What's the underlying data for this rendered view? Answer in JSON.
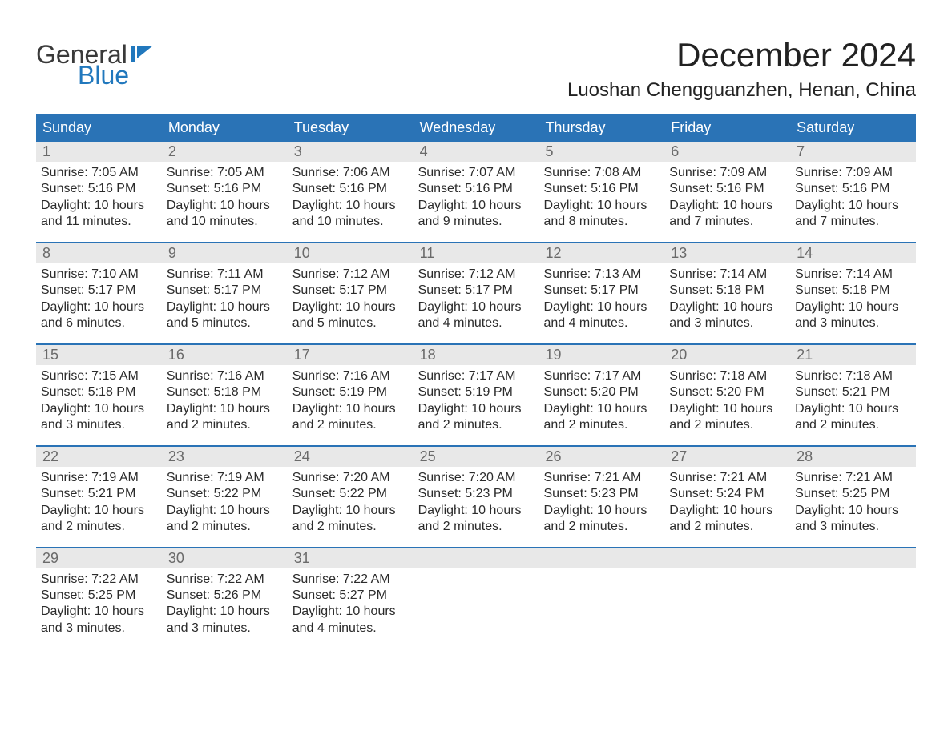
{
  "logo": {
    "text_general": "General",
    "text_blue": "Blue",
    "icon_color": "#2178bd"
  },
  "header": {
    "month_title": "December 2024",
    "location": "Luoshan Chengguanzhen, Henan, China"
  },
  "styling": {
    "header_bg": "#2a73b6",
    "header_text": "#ffffff",
    "row_divider": "#2a73b6",
    "daynum_bg": "#e8e8e8",
    "daynum_color": "#6a6a6a",
    "body_text": "#2b2b2b",
    "page_bg": "#ffffff",
    "title_fontsize": 42,
    "location_fontsize": 24,
    "dow_fontsize": 18,
    "body_fontsize": 16,
    "columns": 7
  },
  "calendar": {
    "dow": [
      "Sunday",
      "Monday",
      "Tuesday",
      "Wednesday",
      "Thursday",
      "Friday",
      "Saturday"
    ],
    "weeks": [
      [
        {
          "n": "1",
          "sr": "Sunrise: 7:05 AM",
          "ss": "Sunset: 5:16 PM",
          "d1": "Daylight: 10 hours",
          "d2": "and 11 minutes."
        },
        {
          "n": "2",
          "sr": "Sunrise: 7:05 AM",
          "ss": "Sunset: 5:16 PM",
          "d1": "Daylight: 10 hours",
          "d2": "and 10 minutes."
        },
        {
          "n": "3",
          "sr": "Sunrise: 7:06 AM",
          "ss": "Sunset: 5:16 PM",
          "d1": "Daylight: 10 hours",
          "d2": "and 10 minutes."
        },
        {
          "n": "4",
          "sr": "Sunrise: 7:07 AM",
          "ss": "Sunset: 5:16 PM",
          "d1": "Daylight: 10 hours",
          "d2": "and 9 minutes."
        },
        {
          "n": "5",
          "sr": "Sunrise: 7:08 AM",
          "ss": "Sunset: 5:16 PM",
          "d1": "Daylight: 10 hours",
          "d2": "and 8 minutes."
        },
        {
          "n": "6",
          "sr": "Sunrise: 7:09 AM",
          "ss": "Sunset: 5:16 PM",
          "d1": "Daylight: 10 hours",
          "d2": "and 7 minutes."
        },
        {
          "n": "7",
          "sr": "Sunrise: 7:09 AM",
          "ss": "Sunset: 5:16 PM",
          "d1": "Daylight: 10 hours",
          "d2": "and 7 minutes."
        }
      ],
      [
        {
          "n": "8",
          "sr": "Sunrise: 7:10 AM",
          "ss": "Sunset: 5:17 PM",
          "d1": "Daylight: 10 hours",
          "d2": "and 6 minutes."
        },
        {
          "n": "9",
          "sr": "Sunrise: 7:11 AM",
          "ss": "Sunset: 5:17 PM",
          "d1": "Daylight: 10 hours",
          "d2": "and 5 minutes."
        },
        {
          "n": "10",
          "sr": "Sunrise: 7:12 AM",
          "ss": "Sunset: 5:17 PM",
          "d1": "Daylight: 10 hours",
          "d2": "and 5 minutes."
        },
        {
          "n": "11",
          "sr": "Sunrise: 7:12 AM",
          "ss": "Sunset: 5:17 PM",
          "d1": "Daylight: 10 hours",
          "d2": "and 4 minutes."
        },
        {
          "n": "12",
          "sr": "Sunrise: 7:13 AM",
          "ss": "Sunset: 5:17 PM",
          "d1": "Daylight: 10 hours",
          "d2": "and 4 minutes."
        },
        {
          "n": "13",
          "sr": "Sunrise: 7:14 AM",
          "ss": "Sunset: 5:18 PM",
          "d1": "Daylight: 10 hours",
          "d2": "and 3 minutes."
        },
        {
          "n": "14",
          "sr": "Sunrise: 7:14 AM",
          "ss": "Sunset: 5:18 PM",
          "d1": "Daylight: 10 hours",
          "d2": "and 3 minutes."
        }
      ],
      [
        {
          "n": "15",
          "sr": "Sunrise: 7:15 AM",
          "ss": "Sunset: 5:18 PM",
          "d1": "Daylight: 10 hours",
          "d2": "and 3 minutes."
        },
        {
          "n": "16",
          "sr": "Sunrise: 7:16 AM",
          "ss": "Sunset: 5:18 PM",
          "d1": "Daylight: 10 hours",
          "d2": "and 2 minutes."
        },
        {
          "n": "17",
          "sr": "Sunrise: 7:16 AM",
          "ss": "Sunset: 5:19 PM",
          "d1": "Daylight: 10 hours",
          "d2": "and 2 minutes."
        },
        {
          "n": "18",
          "sr": "Sunrise: 7:17 AM",
          "ss": "Sunset: 5:19 PM",
          "d1": "Daylight: 10 hours",
          "d2": "and 2 minutes."
        },
        {
          "n": "19",
          "sr": "Sunrise: 7:17 AM",
          "ss": "Sunset: 5:20 PM",
          "d1": "Daylight: 10 hours",
          "d2": "and 2 minutes."
        },
        {
          "n": "20",
          "sr": "Sunrise: 7:18 AM",
          "ss": "Sunset: 5:20 PM",
          "d1": "Daylight: 10 hours",
          "d2": "and 2 minutes."
        },
        {
          "n": "21",
          "sr": "Sunrise: 7:18 AM",
          "ss": "Sunset: 5:21 PM",
          "d1": "Daylight: 10 hours",
          "d2": "and 2 minutes."
        }
      ],
      [
        {
          "n": "22",
          "sr": "Sunrise: 7:19 AM",
          "ss": "Sunset: 5:21 PM",
          "d1": "Daylight: 10 hours",
          "d2": "and 2 minutes."
        },
        {
          "n": "23",
          "sr": "Sunrise: 7:19 AM",
          "ss": "Sunset: 5:22 PM",
          "d1": "Daylight: 10 hours",
          "d2": "and 2 minutes."
        },
        {
          "n": "24",
          "sr": "Sunrise: 7:20 AM",
          "ss": "Sunset: 5:22 PM",
          "d1": "Daylight: 10 hours",
          "d2": "and 2 minutes."
        },
        {
          "n": "25",
          "sr": "Sunrise: 7:20 AM",
          "ss": "Sunset: 5:23 PM",
          "d1": "Daylight: 10 hours",
          "d2": "and 2 minutes."
        },
        {
          "n": "26",
          "sr": "Sunrise: 7:21 AM",
          "ss": "Sunset: 5:23 PM",
          "d1": "Daylight: 10 hours",
          "d2": "and 2 minutes."
        },
        {
          "n": "27",
          "sr": "Sunrise: 7:21 AM",
          "ss": "Sunset: 5:24 PM",
          "d1": "Daylight: 10 hours",
          "d2": "and 2 minutes."
        },
        {
          "n": "28",
          "sr": "Sunrise: 7:21 AM",
          "ss": "Sunset: 5:25 PM",
          "d1": "Daylight: 10 hours",
          "d2": "and 3 minutes."
        }
      ],
      [
        {
          "n": "29",
          "sr": "Sunrise: 7:22 AM",
          "ss": "Sunset: 5:25 PM",
          "d1": "Daylight: 10 hours",
          "d2": "and 3 minutes."
        },
        {
          "n": "30",
          "sr": "Sunrise: 7:22 AM",
          "ss": "Sunset: 5:26 PM",
          "d1": "Daylight: 10 hours",
          "d2": "and 3 minutes."
        },
        {
          "n": "31",
          "sr": "Sunrise: 7:22 AM",
          "ss": "Sunset: 5:27 PM",
          "d1": "Daylight: 10 hours",
          "d2": "and 4 minutes."
        },
        {
          "n": "",
          "sr": "",
          "ss": "",
          "d1": "",
          "d2": ""
        },
        {
          "n": "",
          "sr": "",
          "ss": "",
          "d1": "",
          "d2": ""
        },
        {
          "n": "",
          "sr": "",
          "ss": "",
          "d1": "",
          "d2": ""
        },
        {
          "n": "",
          "sr": "",
          "ss": "",
          "d1": "",
          "d2": ""
        }
      ]
    ]
  }
}
